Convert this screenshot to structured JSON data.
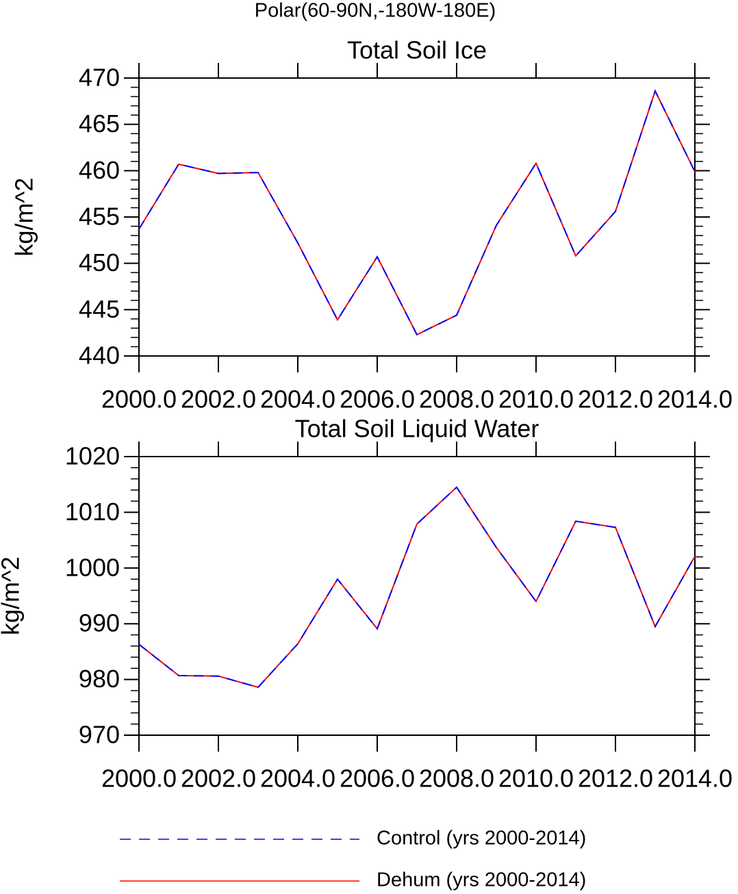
{
  "title": "Polar(60-90N,-180W-180E)",
  "legend_position": "bottom",
  "chart_data": [
    {
      "type": "line",
      "title": "Total Soil Ice",
      "y_label": "kg/m^2",
      "x": [
        2000,
        2001,
        2002,
        2003,
        2004,
        2005,
        2006,
        2007,
        2008,
        2009,
        2010,
        2011,
        2012,
        2013,
        2014
      ],
      "series": [
        {
          "name": "Control (yrs 2000-2014)",
          "color": "#0000ff",
          "dash": true,
          "values": [
            453.7,
            460.7,
            459.7,
            459.8,
            452.2,
            443.9,
            450.7,
            442.3,
            444.4,
            454.1,
            460.8,
            450.8,
            455.6,
            468.6,
            459.9
          ]
        },
        {
          "name": "Dehum (yrs 2000-2014)",
          "color": "#ff0000",
          "dash": false,
          "values": [
            453.7,
            460.7,
            459.7,
            459.8,
            452.2,
            443.9,
            450.7,
            442.3,
            444.4,
            454.1,
            460.8,
            450.8,
            455.6,
            468.6,
            459.9
          ]
        }
      ],
      "xlim": [
        2000,
        2014
      ],
      "ylim": [
        440,
        470
      ],
      "xticks": [
        {
          "value": 2000,
          "label": "2000.0"
        },
        {
          "value": 2002,
          "label": "2002.0"
        },
        {
          "value": 2004,
          "label": "2004.0"
        },
        {
          "value": 2006,
          "label": "2006.0"
        },
        {
          "value": 2008,
          "label": "2008.0"
        },
        {
          "value": 2010,
          "label": "2010.0"
        },
        {
          "value": 2012,
          "label": "2012.0"
        },
        {
          "value": 2014,
          "label": "2014.0"
        }
      ],
      "yticks": [
        440,
        445,
        450,
        455,
        460,
        465,
        470
      ]
    },
    {
      "type": "line",
      "title": "Total Soil Liquid Water",
      "y_label": "kg/m^2",
      "x": [
        2000,
        2001,
        2002,
        2003,
        2004,
        2005,
        2006,
        2007,
        2008,
        2009,
        2010,
        2011,
        2012,
        2013,
        2014
      ],
      "series": [
        {
          "name": "Control (yrs 2000-2014)",
          "color": "#0000ff",
          "dash": true,
          "values": [
            986.3,
            980.7,
            980.6,
            978.6,
            986.4,
            998.0,
            989.1,
            1007.9,
            1014.5,
            1003.7,
            994.0,
            1008.4,
            1007.3,
            989.5,
            1002.1
          ]
        },
        {
          "name": "Dehum (yrs 2000-2014)",
          "color": "#ff0000",
          "dash": false,
          "values": [
            986.3,
            980.7,
            980.6,
            978.6,
            986.4,
            998.0,
            989.1,
            1007.9,
            1014.5,
            1003.7,
            994.0,
            1008.4,
            1007.3,
            989.5,
            1002.1
          ]
        }
      ],
      "xlim": [
        2000,
        2014
      ],
      "ylim": [
        970,
        1020
      ],
      "xticks": [
        {
          "value": 2000,
          "label": "2000.0"
        },
        {
          "value": 2002,
          "label": "2002.0"
        },
        {
          "value": 2004,
          "label": "2004.0"
        },
        {
          "value": 2006,
          "label": "2006.0"
        },
        {
          "value": 2008,
          "label": "2008.0"
        },
        {
          "value": 2010,
          "label": "2010.0"
        },
        {
          "value": 2012,
          "label": "2012.0"
        },
        {
          "value": 2014,
          "label": "2014.0"
        }
      ],
      "yticks": [
        970,
        980,
        990,
        1000,
        1010,
        1020
      ]
    }
  ]
}
